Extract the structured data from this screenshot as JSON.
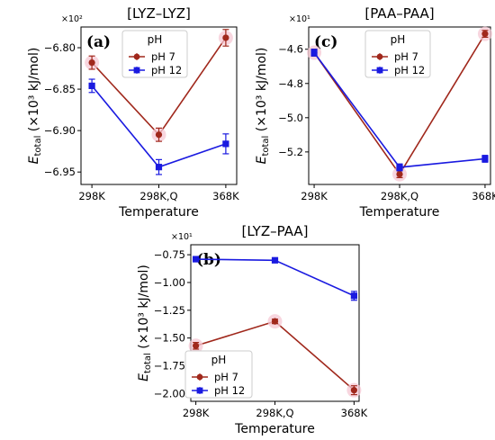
{
  "colors": {
    "ph7": "#a0281c",
    "ph12": "#1a1ae0",
    "halo": "#f5c8d4"
  },
  "chart_data": [
    {
      "id": "a",
      "type": "line",
      "title": "[LYZ–LYZ]",
      "panel_letter": "(a)",
      "ylabel_prefix": "E",
      "ylabel_sub": "total",
      "ylabel_rest": " (×10³ kJ/mol)",
      "xlabel": "Temperature",
      "categories": [
        "298K",
        "298K,Q",
        "368K"
      ],
      "offset_label": "×10²",
      "ylim": [
        -6.965,
        -6.775
      ],
      "yticks": [
        -6.8,
        -6.85,
        -6.9,
        -6.95
      ],
      "ytick_labels": [
        "−6.80",
        "−6.85",
        "−6.90",
        "−6.95"
      ],
      "legend": {
        "title": "pH",
        "position": "top-center"
      },
      "series": [
        {
          "name": "pH 7",
          "marker": "circle",
          "values": [
            -6.818,
            -6.905,
            -6.788
          ],
          "errors": [
            0.008,
            0.008,
            0.01
          ]
        },
        {
          "name": "pH 12",
          "marker": "square",
          "values": [
            -6.846,
            -6.944,
            -6.916
          ],
          "errors": [
            0.008,
            0.009,
            0.012
          ]
        }
      ]
    },
    {
      "id": "c",
      "type": "line",
      "title": "[PAA–PAA]",
      "panel_letter": "(c)",
      "ylabel_prefix": "E",
      "ylabel_sub": "total",
      "ylabel_rest": " (×10³ kJ/mol)",
      "xlabel": "Temperature",
      "categories": [
        "298K",
        "298K,Q",
        "368K"
      ],
      "offset_label": "×10¹",
      "ylim": [
        -5.39,
        -4.47
      ],
      "yticks": [
        -4.6,
        -4.8,
        -5.0,
        -5.2
      ],
      "ytick_labels": [
        "−4.6",
        "−4.8",
        "−5.0",
        "−5.2"
      ],
      "legend": {
        "title": "pH",
        "position": "top-center"
      },
      "series": [
        {
          "name": "pH 7",
          "marker": "circle",
          "values": [
            -4.62,
            -5.33,
            -4.51
          ],
          "errors": [
            0.02,
            0.02,
            0.02
          ]
        },
        {
          "name": "pH 12",
          "marker": "square",
          "values": [
            -4.62,
            -5.29,
            -5.24
          ],
          "errors": [
            0.02,
            0.02,
            0.02
          ]
        }
      ]
    },
    {
      "id": "b",
      "type": "line",
      "title": "[LYZ–PAA]",
      "panel_letter": "(b)",
      "ylabel_prefix": "E",
      "ylabel_sub": "total",
      "ylabel_rest": " (×10³ kJ/mol)",
      "xlabel": "Temperature",
      "categories": [
        "298K",
        "298K,Q",
        "368K"
      ],
      "offset_label": "×10¹",
      "ylim": [
        -2.07,
        -0.66
      ],
      "yticks": [
        -0.75,
        -1.0,
        -1.25,
        -1.5,
        -1.75,
        -2.0
      ],
      "ytick_labels": [
        "−0.75",
        "−1.00",
        "−1.25",
        "−1.50",
        "−1.75",
        "−2.00"
      ],
      "legend": {
        "title": "pH",
        "position": "lower-left"
      },
      "series": [
        {
          "name": "pH 7",
          "marker": "circle",
          "values": [
            -1.57,
            -1.35,
            -1.97
          ],
          "errors": [
            0.03,
            0.02,
            0.04
          ]
        },
        {
          "name": "pH 12",
          "marker": "square",
          "values": [
            -0.79,
            -0.8,
            -1.12
          ],
          "errors": [
            0.01,
            0.01,
            0.04
          ]
        }
      ]
    }
  ]
}
